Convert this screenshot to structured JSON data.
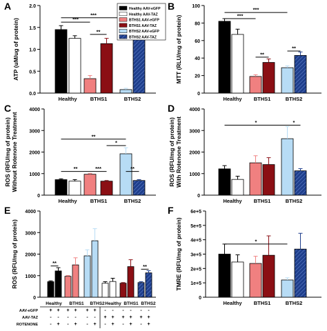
{
  "colors": {
    "healthy_egfp": "#000000",
    "healthy_taz": "#ffffff",
    "bths1_egfp": "#f08080",
    "bths1_taz": "#8b0f14",
    "bths2_egfp": "#b7dcf5",
    "bths2_taz": "#1f3f8c"
  },
  "chart_data": [
    {
      "panel": "A",
      "type": "bar",
      "ylabel": "ATP (uM/ug of protein)",
      "ylim": [
        0.0,
        2.0
      ],
      "yticks": [
        "0.0",
        "0.5",
        "1.0",
        "1.5",
        "2.0"
      ],
      "tick_values": [
        0,
        0.5,
        1.0,
        1.5,
        2.0
      ],
      "categories": [
        "Healthy",
        "BTHS1",
        "BTHS2"
      ],
      "legend": {
        "placement": "top-right",
        "entries": [
          "Healthy AAV-eGFP",
          "Healthy AAV-TAZ",
          "BTHS1 AAV-eGFP",
          "BTHS1 AAV-TAZ",
          "BTHS2 AAV-eGFP",
          "BTHS2 AAV-TAZ"
        ]
      },
      "series": [
        {
          "name": "Healthy AAV-eGFP",
          "group": "Healthy",
          "value": 1.45,
          "err": 0.09,
          "color": "#000000",
          "pattern": "solid"
        },
        {
          "name": "Healthy AAV-TAZ",
          "group": "Healthy",
          "value": 1.25,
          "err": 0.06,
          "color": "#ffffff",
          "pattern": "solid"
        },
        {
          "name": "BTHS1 AAV-eGFP",
          "group": "BTHS1",
          "value": 0.33,
          "err": 0.07,
          "color": "#f08080",
          "pattern": "solid"
        },
        {
          "name": "BTHS1 AAV-TAZ",
          "group": "BTHS1",
          "value": 1.13,
          "err": 0.12,
          "color": "#8b0f14",
          "pattern": "solid"
        },
        {
          "name": "BTHS2 AAV-eGFP",
          "group": "BTHS2",
          "value": 0.08,
          "err": 0.03,
          "color": "#b7dcf5",
          "pattern": "solid"
        },
        {
          "name": "BTHS2 AAV-TAZ",
          "group": "BTHS2",
          "value": 1.23,
          "err": 0.15,
          "color": "#1f3f8c",
          "pattern": "hatch"
        }
      ],
      "annotations": [
        {
          "from": 0,
          "to": 2,
          "y": 1.62,
          "label": "***"
        },
        {
          "from": 0,
          "to": 4,
          "y": 1.72,
          "label": "***"
        },
        {
          "from": 2,
          "to": 3,
          "y": 1.34,
          "label": "**"
        },
        {
          "from": 4,
          "to": 5,
          "y": 1.45,
          "label": "**"
        }
      ]
    },
    {
      "panel": "B",
      "type": "bar",
      "ylabel": "MTT (RLU/mg of protein)",
      "ylim": [
        0,
        100
      ],
      "yticks": [
        "0",
        "20",
        "40",
        "60",
        "80",
        "100"
      ],
      "tick_values": [
        0,
        20,
        40,
        60,
        80,
        100
      ],
      "categories": [
        "Healthy",
        "BTHS1",
        "BTHS2"
      ],
      "series": [
        {
          "name": "Healthy AAV-eGFP",
          "group": "Healthy",
          "value": 82,
          "err": 3,
          "color": "#000000",
          "pattern": "solid"
        },
        {
          "name": "Healthy AAV-TAZ",
          "group": "Healthy",
          "value": 67,
          "err": 6,
          "color": "#ffffff",
          "pattern": "solid"
        },
        {
          "name": "BTHS1 AAV-eGFP",
          "group": "BTHS1",
          "value": 19,
          "err": 2,
          "color": "#f08080",
          "pattern": "solid"
        },
        {
          "name": "BTHS1 AAV-TAZ",
          "group": "BTHS1",
          "value": 35,
          "err": 4,
          "color": "#8b0f14",
          "pattern": "solid"
        },
        {
          "name": "BTHS2 AAV-eGFP",
          "group": "BTHS2",
          "value": 29,
          "err": 2,
          "color": "#b7dcf5",
          "pattern": "solid"
        },
        {
          "name": "BTHS2 AAV-TAZ",
          "group": "BTHS2",
          "value": 43,
          "err": 4,
          "color": "#1f3f8c",
          "pattern": "hatch"
        }
      ],
      "annotations": [
        {
          "from": 0,
          "to": 2,
          "y": 85,
          "label": "***"
        },
        {
          "from": 0,
          "to": 4,
          "y": 92,
          "label": "***"
        },
        {
          "from": 2,
          "to": 3,
          "y": 41,
          "label": "**"
        },
        {
          "from": 4,
          "to": 5,
          "y": 48,
          "label": "**"
        }
      ]
    },
    {
      "panel": "C",
      "type": "bar",
      "ylabel": [
        "ROS (RFU/mg of protein)",
        "Without Rotenone Treatment"
      ],
      "ylim": [
        0,
        4000
      ],
      "yticks": [
        "0",
        "1000",
        "2000",
        "3000",
        "4000"
      ],
      "tick_values": [
        0,
        1000,
        2000,
        3000,
        4000
      ],
      "categories": [
        "Healthy",
        "BTHS1",
        "BTHS2"
      ],
      "series": [
        {
          "name": "Healthy AAV-eGFP",
          "group": "Healthy",
          "value": 720,
          "err": 40,
          "color": "#000000",
          "pattern": "solid"
        },
        {
          "name": "Healthy AAV-TAZ",
          "group": "Healthy",
          "value": 650,
          "err": 70,
          "color": "#ffffff",
          "pattern": "solid"
        },
        {
          "name": "BTHS1 AAV-eGFP",
          "group": "BTHS1",
          "value": 970,
          "err": 40,
          "color": "#f08080",
          "pattern": "solid"
        },
        {
          "name": "BTHS1 AAV-TAZ",
          "group": "BTHS1",
          "value": 650,
          "err": 30,
          "color": "#8b0f14",
          "pattern": "solid"
        },
        {
          "name": "BTHS2 AAV-eGFP",
          "group": "BTHS2",
          "value": 1920,
          "err": 280,
          "color": "#b7dcf5",
          "pattern": "solid"
        },
        {
          "name": "BTHS2 AAV-TAZ",
          "group": "BTHS2",
          "value": 680,
          "err": 40,
          "color": "#1f3f8c",
          "pattern": "hatch"
        }
      ],
      "annotations": [
        {
          "from": 0,
          "to": 2,
          "y": 1100,
          "label": "**"
        },
        {
          "from": 2,
          "to": 3,
          "y": 1100,
          "label": "***"
        },
        {
          "from": 3,
          "to": 4,
          "y": 2300,
          "label": "*"
        },
        {
          "from": 0,
          "to": 4,
          "y": 2600,
          "label": "**"
        },
        {
          "from": 4,
          "to": 5,
          "y": 1100,
          "label": "**"
        }
      ]
    },
    {
      "panel": "D",
      "type": "bar",
      "ylabel": [
        "ROS (RFU/mg of protein)",
        "With Rotenone Treatment"
      ],
      "ylim": [
        0,
        4000
      ],
      "yticks": [
        "0",
        "1000",
        "2000",
        "3000",
        "4000"
      ],
      "tick_values": [
        0,
        1000,
        2000,
        3000,
        4000
      ],
      "categories": [
        "Healthy",
        "BTHS1",
        "BTHS2"
      ],
      "series": [
        {
          "name": "Healthy AAV-eGFP",
          "group": "Healthy",
          "value": 1220,
          "err": 150,
          "color": "#000000",
          "pattern": "solid"
        },
        {
          "name": "Healthy AAV-TAZ",
          "group": "Healthy",
          "value": 730,
          "err": 150,
          "color": "#ffffff",
          "pattern": "solid"
        },
        {
          "name": "BTHS1 AAV-eGFP",
          "group": "BTHS1",
          "value": 1500,
          "err": 330,
          "color": "#f08080",
          "pattern": "solid"
        },
        {
          "name": "BTHS1 AAV-TAZ",
          "group": "BTHS1",
          "value": 1420,
          "err": 320,
          "color": "#8b0f14",
          "pattern": "solid"
        },
        {
          "name": "BTHS2 AAV-eGFP",
          "group": "BTHS2",
          "value": 2620,
          "err": 560,
          "color": "#b7dcf5",
          "pattern": "solid"
        },
        {
          "name": "BTHS2 AAV-TAZ",
          "group": "BTHS2",
          "value": 1130,
          "err": 100,
          "color": "#1f3f8c",
          "pattern": "hatch"
        }
      ],
      "annotations": [
        {
          "from": 0,
          "to": 4,
          "y": 3250,
          "label": "*"
        },
        {
          "from": 4,
          "to": 5,
          "y": 3250,
          "label": "*"
        }
      ]
    },
    {
      "panel": "E",
      "type": "bar",
      "ylabel": "ROS (RFU/mg of protein)",
      "ylim": [
        0,
        4000
      ],
      "yticks": [
        "0",
        "1000",
        "2000",
        "3000",
        "4000"
      ],
      "tick_values": [
        0,
        1000,
        2000,
        3000,
        4000
      ],
      "categories": [
        "Healthy",
        "BTHS1",
        "BTHS2"
      ],
      "series": [
        {
          "name": "Healthy AAV-eGFP",
          "group": "Healthy",
          "value": 720,
          "err": 40,
          "color": "#000000",
          "pattern": "solid"
        },
        {
          "name": "Healthy AAV-eGFP",
          "group": "Healthy",
          "value": 1220,
          "err": 150,
          "color": "#000000",
          "pattern": "solid"
        },
        {
          "name": "BTHS1 AAV-eGFP",
          "group": "BTHS1",
          "value": 970,
          "err": 40,
          "color": "#f08080",
          "pattern": "solid"
        },
        {
          "name": "BTHS1 AAV-eGFP",
          "group": "BTHS1",
          "value": 1500,
          "err": 330,
          "color": "#f08080",
          "pattern": "solid"
        },
        {
          "name": "BTHS2 AAV-eGFP",
          "group": "BTHS2",
          "value": 1920,
          "err": 280,
          "color": "#b7dcf5",
          "pattern": "solid"
        },
        {
          "name": "BTHS2 AAV-eGFP",
          "group": "BTHS2",
          "value": 2620,
          "err": 560,
          "color": "#b7dcf5",
          "pattern": "solid"
        },
        {
          "name": "Healthy AAV-TAZ",
          "group": "Healthy",
          "value": 650,
          "err": 70,
          "color": "#ffffff",
          "pattern": "solid"
        },
        {
          "name": "Healthy AAV-TAZ",
          "group": "Healthy",
          "value": 730,
          "err": 150,
          "color": "#ffffff",
          "pattern": "solid"
        },
        {
          "name": "BTHS1 AAV-TAZ",
          "group": "BTHS1",
          "value": 650,
          "err": 30,
          "color": "#8b0f14",
          "pattern": "solid"
        },
        {
          "name": "BTHS1 AAV-TAZ",
          "group": "BTHS1",
          "value": 1420,
          "err": 320,
          "color": "#8b0f14",
          "pattern": "solid"
        },
        {
          "name": "BTHS2 AAV-TAZ",
          "group": "BTHS2",
          "value": 680,
          "err": 40,
          "color": "#1f3f8c",
          "pattern": "hatch"
        },
        {
          "name": "BTHS2 AAV-TAZ",
          "group": "BTHS2",
          "value": 1130,
          "err": 100,
          "color": "#1f3f8c",
          "pattern": "hatch"
        }
      ],
      "annotations": [
        {
          "from": 0,
          "to": 1,
          "y": 1450,
          "label": "**"
        },
        {
          "from": 10,
          "to": 11,
          "y": 1300,
          "label": "**"
        }
      ],
      "condition_table": {
        "rows": [
          {
            "label": "AAV-eGFP",
            "values": [
              "+",
              "+",
              "+",
              "+",
              "+",
              "+",
              "-",
              "-",
              "-",
              "-",
              "-",
              "-"
            ]
          },
          {
            "label": "AAV-TAZ",
            "values": [
              "-",
              "-",
              "-",
              "-",
              "-",
              "-",
              "+",
              "+",
              "+",
              "+",
              "+",
              "+"
            ]
          },
          {
            "label": "ROTENONE",
            "values": [
              "-",
              "+",
              "-",
              "+",
              "-",
              "+",
              "-",
              "+",
              "-",
              "+",
              "-",
              "+"
            ]
          }
        ]
      }
    },
    {
      "panel": "F",
      "type": "bar",
      "ylabel": "TMRE (RFU/mg of protein)",
      "ylim": [
        0,
        600000
      ],
      "yticks": [
        "0",
        "1e+5",
        "2e+5",
        "3e+5",
        "4e+5",
        "5e+5",
        "6e+5"
      ],
      "tick_values": [
        0,
        100000,
        200000,
        300000,
        400000,
        500000,
        600000
      ],
      "categories": [
        "Healthy",
        "BTHS1",
        "BTHS2"
      ],
      "series": [
        {
          "name": "Healthy AAV-eGFP",
          "group": "Healthy",
          "value": 300000,
          "err": 70000,
          "color": "#000000",
          "pattern": "solid"
        },
        {
          "name": "Healthy AAV-TAZ",
          "group": "Healthy",
          "value": 245000,
          "err": 50000,
          "color": "#ffffff",
          "pattern": "solid"
        },
        {
          "name": "BTHS1 AAV-eGFP",
          "group": "BTHS1",
          "value": 235000,
          "err": 50000,
          "color": "#f08080",
          "pattern": "solid"
        },
        {
          "name": "BTHS1 AAV-TAZ",
          "group": "BTHS1",
          "value": 292000,
          "err": 135000,
          "color": "#8b0f14",
          "pattern": "solid"
        },
        {
          "name": "BTHS2 AAV-eGFP",
          "group": "BTHS2",
          "value": 120000,
          "err": 15000,
          "color": "#b7dcf5",
          "pattern": "solid"
        },
        {
          "name": "BTHS2 AAV-TAZ",
          "group": "BTHS2",
          "value": 335000,
          "err": 110000,
          "color": "#1f3f8c",
          "pattern": "hatch"
        }
      ],
      "annotations": [
        {
          "from": 0,
          "to": 4,
          "y": 370000,
          "label": "*"
        }
      ]
    }
  ]
}
